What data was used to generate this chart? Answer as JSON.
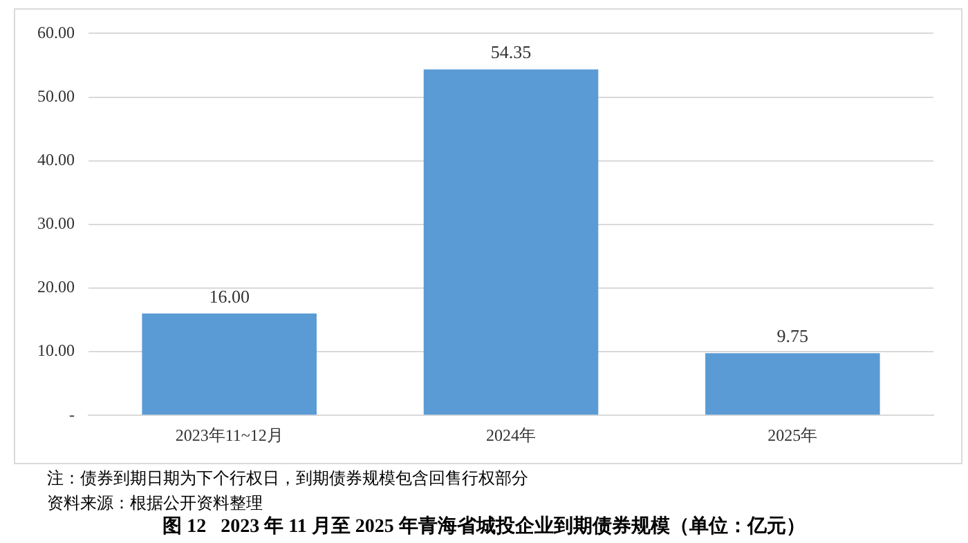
{
  "chart_data": {
    "type": "bar",
    "title": "图 12   2023 年 11 月至 2025 年青海省城投企业到期债券规模（单位：亿元）",
    "categories": [
      "2023年11~12月",
      "2024年",
      "2025年"
    ],
    "values": [
      16.0,
      54.35,
      9.75
    ],
    "value_labels": [
      "16.00",
      "54.35",
      "9.75"
    ],
    "color": "#5b9bd5",
    "ylim": [
      0,
      60
    ],
    "yticks": [
      {
        "value": 0,
        "label": "-"
      },
      {
        "value": 10,
        "label": "10.00"
      },
      {
        "value": 20,
        "label": "20.00"
      },
      {
        "value": 30,
        "label": "30.00"
      },
      {
        "value": 40,
        "label": "40.00"
      },
      {
        "value": 50,
        "label": "50.00"
      },
      {
        "value": 60,
        "label": "60.00"
      }
    ],
    "grid": "y",
    "legend": false,
    "annotations": [
      "注：债券到期日期为下个行权日，到期债券规模包含回售行权部分",
      "资料来源：根据公开资料整理"
    ]
  }
}
